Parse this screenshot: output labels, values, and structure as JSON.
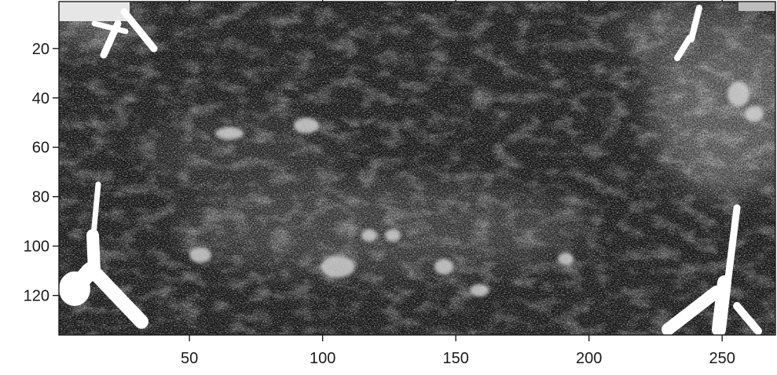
{
  "chart_data": {
    "type": "heatmap",
    "colormap": "gray",
    "xlim": [
      1,
      270
    ],
    "ylim": [
      1,
      136
    ],
    "y_direction": "top-down",
    "x_ticks": [
      50,
      100,
      150,
      200,
      250
    ],
    "y_ticks": [
      20,
      40,
      60,
      80,
      100,
      120
    ],
    "x_tick_labels": [
      "50",
      "100",
      "150",
      "200",
      "250"
    ],
    "y_tick_labels": [
      "20",
      "40",
      "60",
      "80",
      "100",
      "120"
    ],
    "image_description": "noisy grayscale intensity map; mostly dark with mottled gray texture, bright white structures in the four corners",
    "bright_features": [
      {
        "corner": "top-left",
        "intensity": 1.0
      },
      {
        "corner": "top-right",
        "intensity": 1.0
      },
      {
        "corner": "bottom-left",
        "intensity": 1.0
      },
      {
        "corner": "bottom-right",
        "intensity": 1.0
      }
    ],
    "grid": false,
    "legend": "none"
  }
}
